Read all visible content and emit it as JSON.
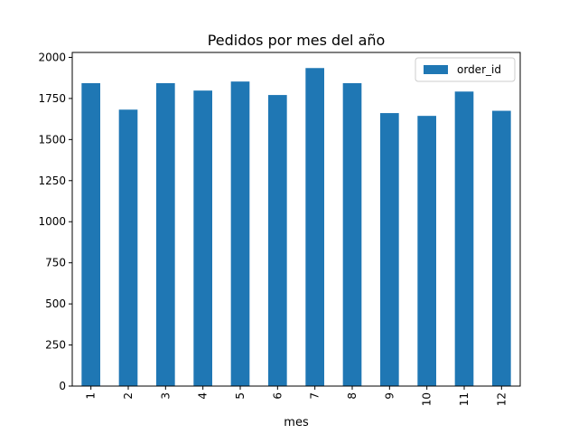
{
  "chart_data": {
    "type": "bar",
    "title": "Pedidos por mes del año",
    "xlabel": "mes",
    "ylabel": "",
    "categories": [
      "1",
      "2",
      "3",
      "4",
      "5",
      "6",
      "7",
      "8",
      "9",
      "10",
      "11",
      "12"
    ],
    "series": [
      {
        "name": "order_id",
        "values": [
          1843,
          1682,
          1843,
          1798,
          1853,
          1771,
          1935,
          1843,
          1661,
          1644,
          1792,
          1675
        ],
        "color": "#1f77b4"
      }
    ],
    "ylim": [
      0,
      2030
    ],
    "yticks": [
      "0",
      "250",
      "500",
      "750",
      "1000",
      "1250",
      "1500",
      "1750",
      "2000"
    ],
    "ytick_values": [
      0,
      250,
      500,
      750,
      1000,
      1250,
      1500,
      1750,
      2000
    ],
    "legend_position": "top-right",
    "grid": false,
    "xtick_rotation": "vertical"
  }
}
